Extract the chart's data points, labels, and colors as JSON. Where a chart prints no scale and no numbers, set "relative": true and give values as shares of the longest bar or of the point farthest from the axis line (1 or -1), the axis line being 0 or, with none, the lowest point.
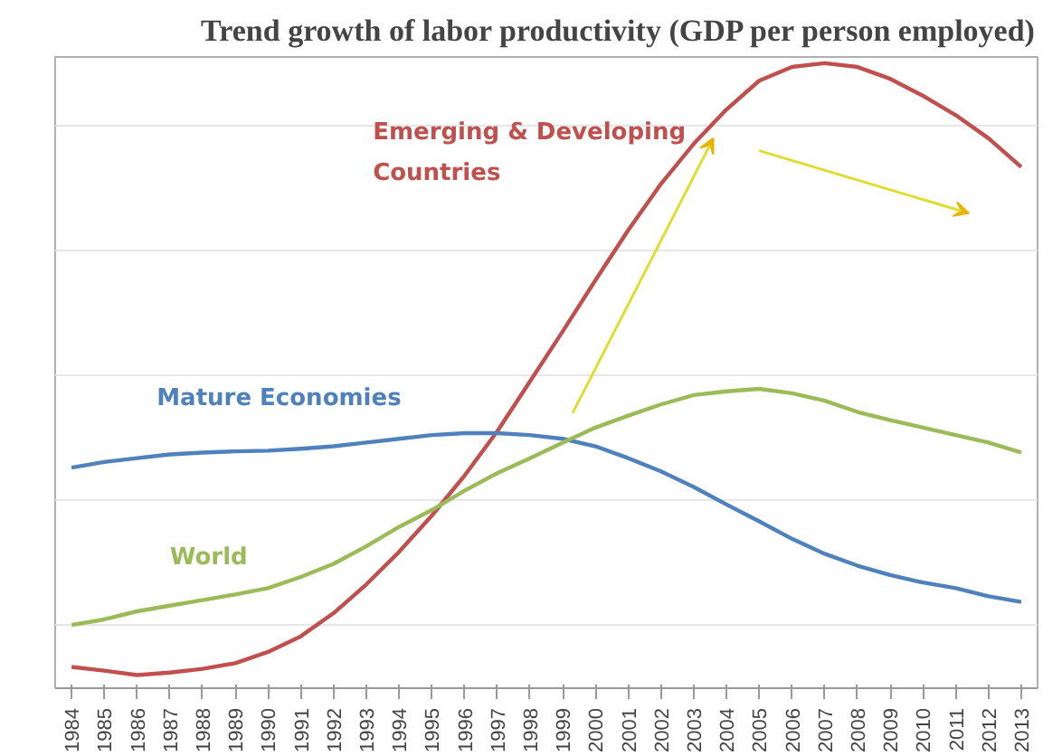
{
  "chart_data": {
    "type": "line",
    "title": "Trend growth of labor productivity (GDP per person employed)",
    "relative": true,
    "grid": "y",
    "marker": "none",
    "line_style": "solid",
    "categories": [
      "1984",
      "1985",
      "1986",
      "1987",
      "1988",
      "1989",
      "1990",
      "1991",
      "1992",
      "1993",
      "1994",
      "1995",
      "1996",
      "1997",
      "1998",
      "1999",
      "2000",
      "2001",
      "2002",
      "2003",
      "2004",
      "2005",
      "2006",
      "2007",
      "2008",
      "2009",
      "2010",
      "2011",
      "2012",
      "2013"
    ],
    "series": [
      {
        "name": "Emerging & Developing Countries",
        "color": "#c0504d",
        "values": [
          0.034,
          0.028,
          0.021,
          0.025,
          0.031,
          0.04,
          0.058,
          0.083,
          0.12,
          0.166,
          0.218,
          0.276,
          0.34,
          0.411,
          0.491,
          0.571,
          0.653,
          0.733,
          0.807,
          0.871,
          0.926,
          0.972,
          0.994,
          1,
          0.994,
          0.975,
          0.948,
          0.917,
          0.88,
          0.834
        ]
      },
      {
        "name": "Mature Economies",
        "color": "#4f81bd",
        "values": [
          0.353,
          0.362,
          0.368,
          0.374,
          0.377,
          0.379,
          0.38,
          0.383,
          0.387,
          0.393,
          0.399,
          0.405,
          0.408,
          0.408,
          0.405,
          0.399,
          0.387,
          0.368,
          0.347,
          0.322,
          0.294,
          0.267,
          0.239,
          0.215,
          0.196,
          0.181,
          0.169,
          0.16,
          0.147,
          0.138
        ]
      },
      {
        "name": "World",
        "color": "#9bbb59",
        "values": [
          0.101,
          0.11,
          0.123,
          0.132,
          0.141,
          0.15,
          0.16,
          0.178,
          0.199,
          0.227,
          0.258,
          0.285,
          0.316,
          0.344,
          0.368,
          0.393,
          0.417,
          0.436,
          0.454,
          0.469,
          0.475,
          0.479,
          0.472,
          0.46,
          0.442,
          0.429,
          0.417,
          0.405,
          0.393,
          0.377
        ]
      }
    ]
  }
}
